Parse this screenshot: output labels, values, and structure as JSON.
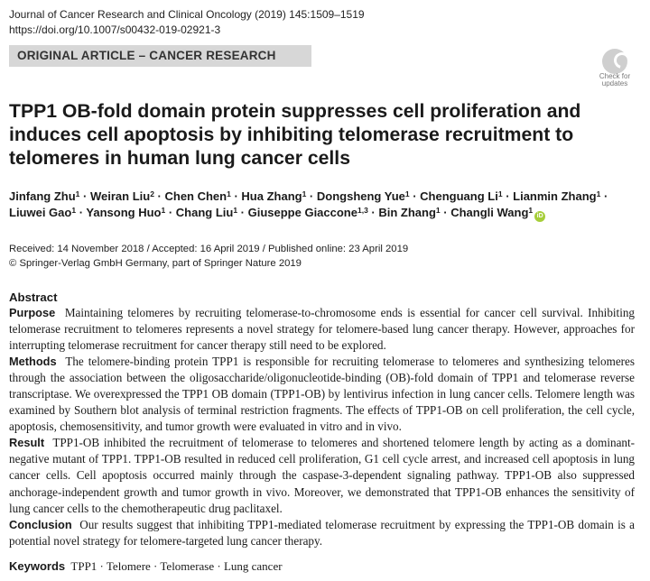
{
  "journal": {
    "citation": "Journal of Cancer Research and Clinical Oncology (2019) 145:1509–1519",
    "doi": "https://doi.org/10.1007/s00432-019-02921-3"
  },
  "banner": {
    "label": "ORIGINAL ARTICLE – CANCER RESEARCH"
  },
  "check_updates": {
    "line1": "Check for",
    "line2": "updates"
  },
  "title": "TPP1 OB-fold domain protein suppresses cell proliferation and induces cell apoptosis by inhibiting telomerase recruitment to telomeres in human lung cancer cells",
  "authors": [
    {
      "name": "Jinfang Zhu",
      "sup": "1"
    },
    {
      "name": "Weiran Liu",
      "sup": "2"
    },
    {
      "name": "Chen Chen",
      "sup": "1"
    },
    {
      "name": "Hua Zhang",
      "sup": "1"
    },
    {
      "name": "Dongsheng Yue",
      "sup": "1"
    },
    {
      "name": "Chenguang Li",
      "sup": "1"
    },
    {
      "name": "Lianmin Zhang",
      "sup": "1"
    },
    {
      "name": "Liuwei Gao",
      "sup": "1"
    },
    {
      "name": "Yansong Huo",
      "sup": "1"
    },
    {
      "name": "Chang Liu",
      "sup": "1"
    },
    {
      "name": "Giuseppe Giaccone",
      "sup": "1,3"
    },
    {
      "name": "Bin Zhang",
      "sup": "1"
    },
    {
      "name": "Changli Wang",
      "sup": "1"
    }
  ],
  "author_separator": " · ",
  "orcid_badge": "iD",
  "history": {
    "dates": "Received: 14 November 2018 / Accepted: 16 April 2019 / Published online: 23 April 2019",
    "copyright": "© Springer-Verlag GmbH Germany, part of Springer Nature 2019"
  },
  "abstract": {
    "heading": "Abstract",
    "sections": [
      {
        "label": "Purpose",
        "text": "Maintaining telomeres by recruiting telomerase-to-chromosome ends is essential for cancer cell survival. Inhibiting telomerase recruitment to telomeres represents a novel strategy for telomere-based lung cancer therapy. However, approaches for interrupting telomerase recruitment for cancer therapy still need to be explored."
      },
      {
        "label": "Methods",
        "text": "The telomere-binding protein TPP1 is responsible for recruiting telomerase to telomeres and synthesizing telomeres through the association between the oligosaccharide/oligonucleotide-binding (OB)-fold domain of TPP1 and telomerase reverse transcriptase. We overexpressed the TPP1 OB domain (TPP1-OB) by lentivirus infection in lung cancer cells. Telomere length was examined by Southern blot analysis of terminal restriction fragments. The effects of TPP1-OB on cell proliferation, the cell cycle, apoptosis, chemosensitivity, and tumor growth were evaluated in vitro and in vivo."
      },
      {
        "label": "Result",
        "text": "TPP1-OB inhibited the recruitment of telomerase to telomeres and shortened telomere length by acting as a dominant-negative mutant of TPP1. TPP1-OB resulted in reduced cell proliferation, G1 cell cycle arrest, and increased cell apoptosis in lung cancer cells. Cell apoptosis occurred mainly through the caspase-3-dependent signaling pathway. TPP1-OB also suppressed anchorage-independent growth and tumor growth in vivo. Moreover, we demonstrated that TPP1-OB enhances the sensitivity of lung cancer cells to the chemotherapeutic drug paclitaxel."
      },
      {
        "label": "Conclusion",
        "text": "Our results suggest that inhibiting TPP1-mediated telomerase recruitment by expressing the TPP1-OB domain is a potential novel strategy for telomere-targeted lung cancer therapy."
      }
    ]
  },
  "keywords": {
    "label": "Keywords",
    "text": "TPP1 · Telomere · Telomerase · Lung cancer"
  },
  "colors": {
    "banner_bg": "#d7d7d7",
    "orcid": "#a6ce39"
  }
}
